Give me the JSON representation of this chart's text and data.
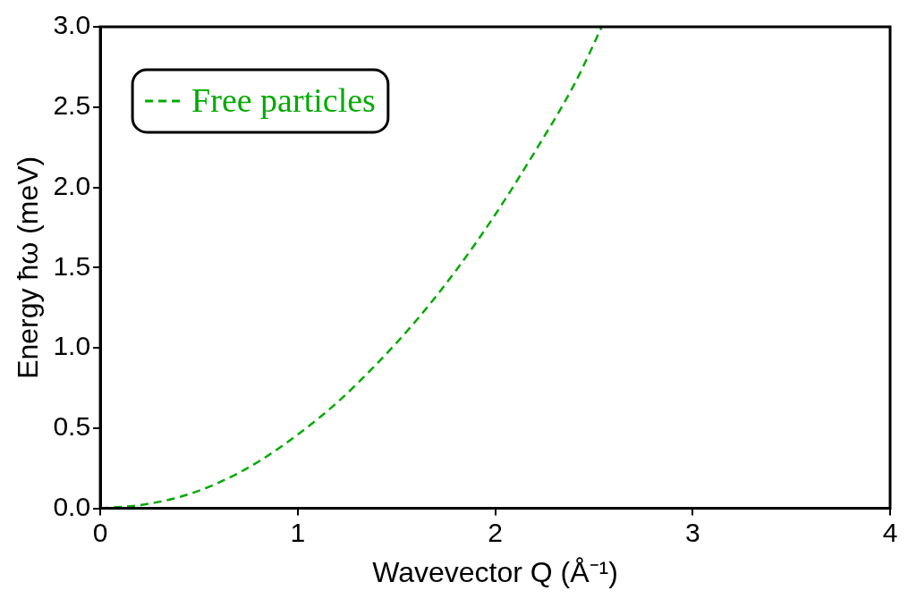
{
  "chart_data": {
    "type": "line",
    "xlabel": "Wavevector Q (Å⁻¹)",
    "ylabel": "Energy ħω (meV)",
    "xlim": [
      0,
      4
    ],
    "xticks": [
      0,
      1,
      2,
      3,
      4
    ],
    "ylim": [
      0,
      3
    ],
    "yticks": [
      {
        "value": 0,
        "label": "0.0"
      },
      {
        "value": 0.5,
        "label": "0.5"
      },
      {
        "value": 1,
        "label": "1.0"
      },
      {
        "value": 1.5,
        "label": "1.5"
      },
      {
        "value": 2,
        "label": "2.0"
      },
      {
        "value": 2.5,
        "label": "2.5"
      },
      {
        "value": 3,
        "label": "3.0"
      }
    ],
    "grid": false,
    "legend": "top left",
    "marker": "none",
    "line_style": "dashed",
    "series": [
      {
        "name": "Free particles",
        "color": "#00aa00",
        "x": [
          0,
          0.2,
          0.4,
          0.6,
          0.8,
          1.0,
          1.2,
          1.4,
          1.6,
          1.8,
          2.0,
          2.2,
          2.4,
          2.54
        ],
        "values": [
          0,
          0.02,
          0.07,
          0.16,
          0.29,
          0.46,
          0.66,
          0.9,
          1.17,
          1.48,
          1.83,
          2.22,
          2.64,
          3.0
        ]
      }
    ]
  }
}
